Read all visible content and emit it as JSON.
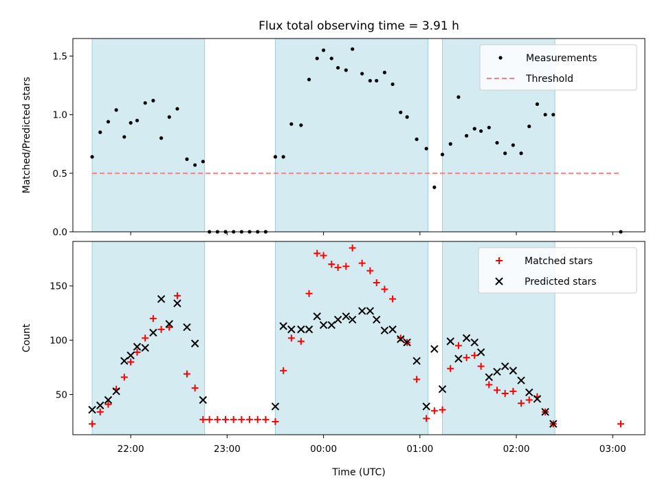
{
  "title": "Flux total observing time = 3.91 h",
  "colors": {
    "shade": "#add8e6",
    "measurement": "#000000",
    "threshold": "#ff7f7f",
    "matched": "#ff0000",
    "predicted": "#000000"
  },
  "chart_data": [
    {
      "type": "scatter",
      "ylabel": "Matched/Predicted stars",
      "xlabel": "",
      "ylim": [
        0,
        1.65
      ],
      "xlim": [
        "21:24",
        "03:20"
      ],
      "yticks": [
        "0.0",
        "0.5",
        "1.0",
        "1.5"
      ],
      "legend_position": "upper right",
      "legend": {
        "measurements": "Measurements",
        "threshold": "Threshold"
      },
      "threshold": 0.5,
      "threshold_x": [
        "21:36",
        "03:05"
      ],
      "shaded_intervals": [
        [
          "21:36",
          "22:46"
        ],
        [
          "23:30",
          "01:05"
        ],
        [
          "01:14",
          "02:24"
        ]
      ],
      "series": [
        {
          "name": "Measurements",
          "points": [
            [
              "21:36",
              0.64
            ],
            [
              "21:41",
              0.85
            ],
            [
              "21:46",
              0.94
            ],
            [
              "21:51",
              1.04
            ],
            [
              "21:56",
              0.81
            ],
            [
              "22:00",
              0.93
            ],
            [
              "22:04",
              0.95
            ],
            [
              "22:09",
              1.1
            ],
            [
              "22:14",
              1.12
            ],
            [
              "22:19",
              0.8
            ],
            [
              "22:24",
              0.98
            ],
            [
              "22:29",
              1.05
            ],
            [
              "22:35",
              0.62
            ],
            [
              "22:40",
              0.57
            ],
            [
              "22:45",
              0.6
            ],
            [
              "22:49",
              0.0
            ],
            [
              "22:54",
              0.0
            ],
            [
              "22:59",
              0.0
            ],
            [
              "23:04",
              0.0
            ],
            [
              "23:09",
              0.0
            ],
            [
              "23:14",
              0.0
            ],
            [
              "23:19",
              0.0
            ],
            [
              "23:24",
              0.0
            ],
            [
              "23:30",
              0.64
            ],
            [
              "23:35",
              0.64
            ],
            [
              "23:40",
              0.92
            ],
            [
              "23:46",
              0.91
            ],
            [
              "23:51",
              1.3
            ],
            [
              "23:56",
              1.48
            ],
            [
              "00:00",
              1.55
            ],
            [
              "00:05",
              1.48
            ],
            [
              "00:09",
              1.4
            ],
            [
              "00:14",
              1.38
            ],
            [
              "00:18",
              1.56
            ],
            [
              "00:24",
              1.35
            ],
            [
              "00:29",
              1.29
            ],
            [
              "00:33",
              1.29
            ],
            [
              "00:38",
              1.36
            ],
            [
              "00:43",
              1.26
            ],
            [
              "00:48",
              1.02
            ],
            [
              "00:52",
              0.98
            ],
            [
              "00:58",
              0.79
            ],
            [
              "01:04",
              0.71
            ],
            [
              "01:09",
              0.38
            ],
            [
              "01:14",
              0.66
            ],
            [
              "01:19",
              0.75
            ],
            [
              "01:24",
              1.15
            ],
            [
              "01:29",
              0.82
            ],
            [
              "01:34",
              0.88
            ],
            [
              "01:38",
              0.86
            ],
            [
              "01:43",
              0.89
            ],
            [
              "01:48",
              0.76
            ],
            [
              "01:53",
              0.67
            ],
            [
              "01:58",
              0.74
            ],
            [
              "02:03",
              0.67
            ],
            [
              "02:08",
              0.9
            ],
            [
              "02:13",
              1.09
            ],
            [
              "02:18",
              1.0
            ],
            [
              "02:23",
              1.0
            ],
            [
              "03:05",
              0.0
            ]
          ]
        }
      ]
    },
    {
      "type": "scatter",
      "ylabel": "Count",
      "xlabel": "Time (UTC)",
      "ylim": [
        13,
        191
      ],
      "xlim": [
        "21:24",
        "03:20"
      ],
      "xticks": [
        "22:00",
        "23:00",
        "00:00",
        "01:00",
        "02:00",
        "03:00"
      ],
      "yticks": [
        "50",
        "100",
        "150"
      ],
      "legend_position": "upper right",
      "legend": {
        "matched": "Matched stars",
        "predicted": "Predicted stars"
      },
      "shaded_intervals": [
        [
          "21:36",
          "22:46"
        ],
        [
          "23:30",
          "01:05"
        ],
        [
          "01:14",
          "02:24"
        ]
      ],
      "series": [
        {
          "name": "Matched stars",
          "points": [
            [
              "21:36",
              23
            ],
            [
              "21:41",
              34
            ],
            [
              "21:46",
              41
            ],
            [
              "21:51",
              55
            ],
            [
              "21:56",
              66
            ],
            [
              "22:00",
              80
            ],
            [
              "22:04",
              89
            ],
            [
              "22:09",
              102
            ],
            [
              "22:14",
              120
            ],
            [
              "22:19",
              110
            ],
            [
              "22:24",
              112
            ],
            [
              "22:29",
              141
            ],
            [
              "22:35",
              69
            ],
            [
              "22:40",
              56
            ],
            [
              "22:45",
              27
            ],
            [
              "22:49",
              27
            ],
            [
              "22:54",
              27
            ],
            [
              "22:59",
              27
            ],
            [
              "23:04",
              27
            ],
            [
              "23:09",
              27
            ],
            [
              "23:14",
              27
            ],
            [
              "23:19",
              27
            ],
            [
              "23:24",
              27
            ],
            [
              "23:30",
              25
            ],
            [
              "23:35",
              72
            ],
            [
              "23:40",
              102
            ],
            [
              "23:46",
              99
            ],
            [
              "23:51",
              143
            ],
            [
              "23:56",
              180
            ],
            [
              "00:00",
              178
            ],
            [
              "00:05",
              170
            ],
            [
              "00:09",
              167
            ],
            [
              "00:14",
              168
            ],
            [
              "00:18",
              185
            ],
            [
              "00:24",
              171
            ],
            [
              "00:29",
              164
            ],
            [
              "00:33",
              153
            ],
            [
              "00:38",
              147
            ],
            [
              "00:43",
              138
            ],
            [
              "00:48",
              102
            ],
            [
              "00:52",
              98
            ],
            [
              "00:58",
              64
            ],
            [
              "01:04",
              28
            ],
            [
              "01:09",
              35
            ],
            [
              "01:14",
              36
            ],
            [
              "01:19",
              74
            ],
            [
              "01:24",
              95
            ],
            [
              "01:29",
              84
            ],
            [
              "01:34",
              86
            ],
            [
              "01:38",
              76
            ],
            [
              "01:43",
              59
            ],
            [
              "01:48",
              54
            ],
            [
              "01:53",
              51
            ],
            [
              "01:58",
              53
            ],
            [
              "02:03",
              42
            ],
            [
              "02:08",
              45
            ],
            [
              "02:13",
              48
            ],
            [
              "02:18",
              34
            ],
            [
              "02:23",
              23
            ],
            [
              "03:05",
              23
            ]
          ]
        },
        {
          "name": "Predicted stars",
          "points": [
            [
              "21:36",
              36
            ],
            [
              "21:41",
              40
            ],
            [
              "21:46",
              45
            ],
            [
              "21:51",
              53
            ],
            [
              "21:56",
              81
            ],
            [
              "22:00",
              86
            ],
            [
              "22:04",
              94
            ],
            [
              "22:09",
              93
            ],
            [
              "22:14",
              107
            ],
            [
              "22:19",
              138
            ],
            [
              "22:24",
              115
            ],
            [
              "22:29",
              134
            ],
            [
              "22:35",
              112
            ],
            [
              "22:40",
              97
            ],
            [
              "22:45",
              45
            ],
            [
              "23:30",
              39
            ],
            [
              "23:35",
              113
            ],
            [
              "23:40",
              110
            ],
            [
              "23:46",
              110
            ],
            [
              "23:51",
              110
            ],
            [
              "23:56",
              122
            ],
            [
              "00:00",
              114
            ],
            [
              "00:05",
              114
            ],
            [
              "00:09",
              119
            ],
            [
              "00:14",
              122
            ],
            [
              "00:18",
              119
            ],
            [
              "00:24",
              127
            ],
            [
              "00:29",
              127
            ],
            [
              "00:33",
              119
            ],
            [
              "00:38",
              109
            ],
            [
              "00:43",
              110
            ],
            [
              "00:48",
              101
            ],
            [
              "00:52",
              98
            ],
            [
              "00:58",
              81
            ],
            [
              "01:04",
              39
            ],
            [
              "01:09",
              92
            ],
            [
              "01:14",
              55
            ],
            [
              "01:19",
              99
            ],
            [
              "01:24",
              83
            ],
            [
              "01:29",
              102
            ],
            [
              "01:34",
              98
            ],
            [
              "01:38",
              89
            ],
            [
              "01:43",
              66
            ],
            [
              "01:48",
              71
            ],
            [
              "01:53",
              76
            ],
            [
              "01:58",
              72
            ],
            [
              "02:03",
              63
            ],
            [
              "02:08",
              52
            ],
            [
              "02:13",
              46
            ],
            [
              "02:18",
              34
            ],
            [
              "02:23",
              23
            ]
          ]
        }
      ]
    }
  ]
}
